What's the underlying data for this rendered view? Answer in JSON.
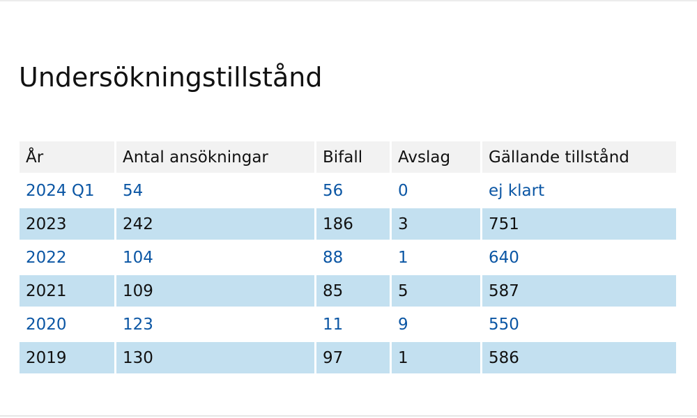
{
  "page": {
    "title": "Undersökningstillstånd"
  },
  "table": {
    "headers": [
      "År",
      "Antal ansökningar",
      "Bifall",
      "Avslag",
      "Gällande tillstånd"
    ],
    "rows": [
      [
        "2024 Q1",
        "54",
        "56",
        "0",
        "ej klart"
      ],
      [
        "2023",
        "242",
        "186",
        "3",
        "751"
      ],
      [
        "2022",
        "104",
        "88",
        "1",
        "640"
      ],
      [
        "2021",
        "109",
        "85",
        "5",
        "587"
      ],
      [
        "2020",
        "123",
        "11",
        "9",
        "550"
      ],
      [
        "2019",
        "130",
        "97",
        "1",
        "586"
      ]
    ]
  },
  "colors": {
    "link_text": "#0b56a4",
    "row_stripe": "#c3e0f0",
    "header_bg": "#f2f2f2"
  }
}
